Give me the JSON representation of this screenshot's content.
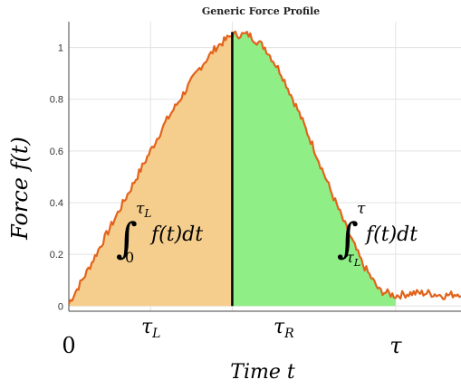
{
  "chart_data": {
    "type": "area",
    "title": "Generic Force Profile",
    "xlabel": "Time t",
    "ylabel": "Force f(t)",
    "xlim": [
      0,
      1.2
    ],
    "ylim": [
      -0.02,
      1.1
    ],
    "yticks": [
      0,
      0.2,
      0.4,
      0.6,
      0.8,
      1
    ],
    "ytick_labels": [
      "0",
      "0.2",
      "0.4",
      "0.6",
      "0.8",
      "1"
    ],
    "x_markers": [
      {
        "value": 0,
        "label": "0"
      },
      {
        "value": 1.0,
        "label": "τ"
      }
    ],
    "tau_L": 0.5,
    "tau": 1.0,
    "series": [
      {
        "color": "#E2631C",
        "x": [
          0,
          0.05,
          0.1,
          0.15,
          0.2,
          0.25,
          0.3,
          0.35,
          0.4,
          0.45,
          0.5,
          0.55,
          0.6,
          0.65,
          0.7,
          0.75,
          0.8,
          0.85,
          0.9,
          0.95,
          1.0,
          1.05,
          1.1,
          1.15,
          1.2
        ],
        "values": [
          0.01,
          0.12,
          0.24,
          0.36,
          0.48,
          0.6,
          0.72,
          0.82,
          0.92,
          1.0,
          1.05,
          1.05,
          1.0,
          0.9,
          0.76,
          0.61,
          0.45,
          0.3,
          0.16,
          0.06,
          0.04,
          0.05,
          0.05,
          0.04,
          0.05
        ]
      }
    ],
    "regions": [
      {
        "from": 0,
        "to": 0.5,
        "color": "#F5CE8D",
        "label_main": "f(t)dt",
        "label_sup": "τL",
        "label_sub": "0",
        "span_label": "τL"
      },
      {
        "from": 0.5,
        "to": 1.0,
        "color": "#8FEF86",
        "label_main": "f(t)dt",
        "label_sup": "τ",
        "label_sub": "τL",
        "span_label": "τR"
      }
    ],
    "grid": true
  }
}
